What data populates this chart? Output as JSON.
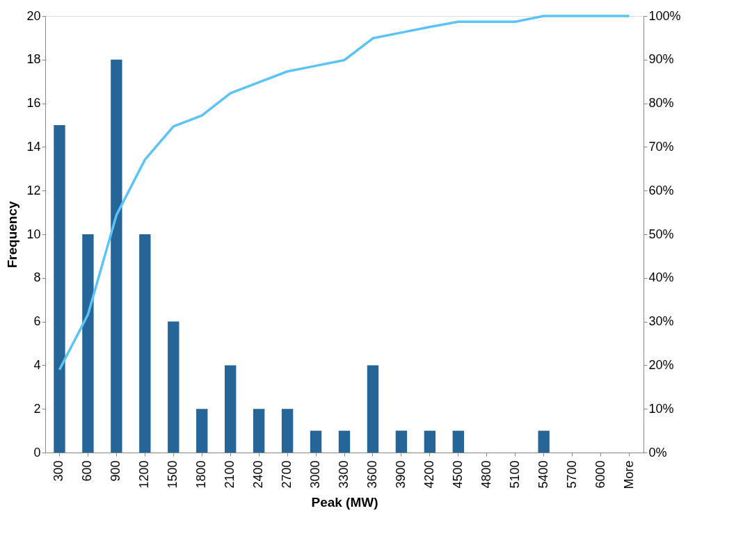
{
  "chart_data": {
    "type": "bar",
    "xlabel": "Peak (MW)",
    "ylabel": "Frequency",
    "categories": [
      "300",
      "600",
      "900",
      "1200",
      "1500",
      "1800",
      "2100",
      "2400",
      "2700",
      "3000",
      "3300",
      "3600",
      "3900",
      "4200",
      "4500",
      "4800",
      "5100",
      "5400",
      "5700",
      "6000",
      "More"
    ],
    "series": [
      {
        "color": "#266597",
        "values": [
          15,
          10,
          18,
          10,
          6,
          2,
          4,
          2,
          2,
          1,
          1,
          4,
          1,
          1,
          1,
          0,
          0,
          1,
          0,
          0,
          0
        ]
      },
      {
        "type": "line",
        "axis": "y2",
        "color": "#5bc4f5",
        "values": [
          19.0,
          31.6,
          54.4,
          67.1,
          74.7,
          77.2,
          82.3,
          84.8,
          87.3,
          88.6,
          89.9,
          94.9,
          96.2,
          97.5,
          98.7,
          98.7,
          98.7,
          100,
          100,
          100,
          100
        ]
      }
    ],
    "ylim": [
      0,
      20
    ],
    "yticks": [
      0,
      2,
      4,
      6,
      8,
      10,
      12,
      14,
      16,
      18,
      20
    ],
    "y2lim": [
      0,
      100
    ],
    "y2ticks": [
      {
        "value": 0,
        "label": "0%"
      },
      {
        "value": 10,
        "label": "10%"
      },
      {
        "value": 20,
        "label": "20%"
      },
      {
        "value": 30,
        "label": "30%"
      },
      {
        "value": 40,
        "label": "40%"
      },
      {
        "value": 50,
        "label": "50%"
      },
      {
        "value": 60,
        "label": "60%"
      },
      {
        "value": 70,
        "label": "70%"
      },
      {
        "value": 80,
        "label": "80%"
      },
      {
        "value": 90,
        "label": "90%"
      },
      {
        "value": 100,
        "label": "100%"
      }
    ],
    "grid": false,
    "line_style": "solid",
    "marker": "none"
  }
}
